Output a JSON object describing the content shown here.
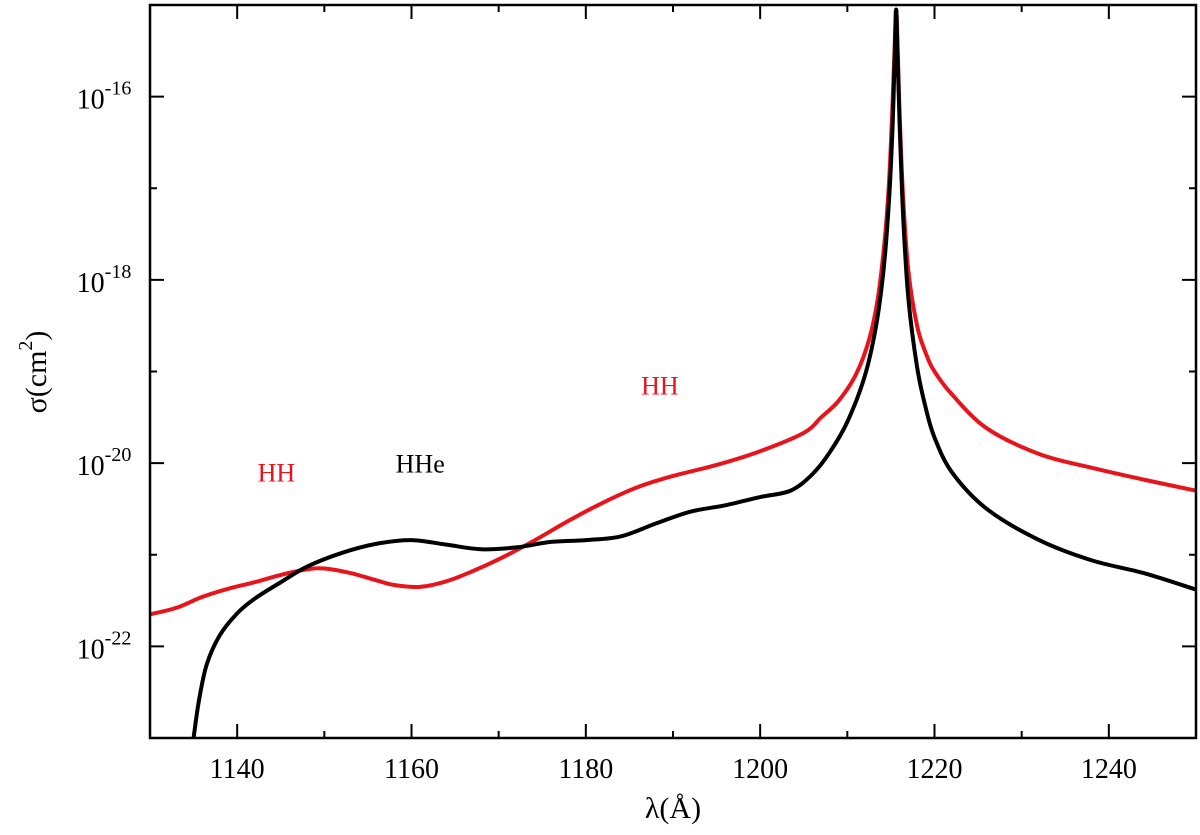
{
  "chart_data": {
    "type": "line",
    "title": "",
    "xlabel": "λ(Å)",
    "ylabel": {
      "base": "σ(cm",
      "sup": "2",
      "close": ")"
    },
    "xlim": [
      1130,
      1250
    ],
    "ylim_log10": [
      -23,
      -15
    ],
    "y_scale": "log",
    "x_ticks": [
      1140,
      1160,
      1180,
      1200,
      1220,
      1240
    ],
    "x_tick_labels": [
      "1140",
      "1160",
      "1180",
      "1200",
      "1220",
      "1240"
    ],
    "y_ticks_log10": [
      -22,
      -20,
      -18,
      -16
    ],
    "y_tick_labels": [
      {
        "base": "10",
        "exp": "-22"
      },
      {
        "base": "10",
        "exp": "-20"
      },
      {
        "base": "10",
        "exp": "-18"
      },
      {
        "base": "10",
        "exp": "-16"
      }
    ],
    "annotations": [
      {
        "text": "HH",
        "x": 1144.5,
        "y_log10": -20.2,
        "color": "#e8141b"
      },
      {
        "text": "HHe",
        "x": 1161,
        "y_log10": -20.1,
        "color": "#000000"
      },
      {
        "text": "HH",
        "x": 1188.5,
        "y_log10": -19.25,
        "color": "#e8141b"
      }
    ],
    "series": [
      {
        "name": "HH",
        "color": "#e8141b",
        "x": [
          1130,
          1133,
          1136,
          1139,
          1142,
          1145,
          1148,
          1150,
          1153,
          1156,
          1158,
          1161,
          1164,
          1167,
          1170,
          1174,
          1178,
          1182,
          1186,
          1190,
          1195,
          1200,
          1205,
          1207,
          1209,
          1211,
          1212.5,
          1213.5,
          1214.3,
          1214.8,
          1215.2,
          1215.45,
          1215.6,
          1215.75,
          1216.0,
          1216.4,
          1217,
          1218,
          1219,
          1220,
          1222,
          1226,
          1232,
          1238,
          1244,
          1250
        ],
        "y_log10": [
          -21.65,
          -21.58,
          -21.46,
          -21.37,
          -21.3,
          -21.22,
          -21.16,
          -21.15,
          -21.2,
          -21.28,
          -21.33,
          -21.35,
          -21.29,
          -21.18,
          -21.05,
          -20.85,
          -20.63,
          -20.43,
          -20.26,
          -20.14,
          -20.02,
          -19.87,
          -19.67,
          -19.5,
          -19.32,
          -19.03,
          -18.65,
          -18.2,
          -17.55,
          -16.9,
          -16.05,
          -15.4,
          -15.05,
          -15.4,
          -16.2,
          -17.1,
          -17.9,
          -18.5,
          -18.8,
          -19.0,
          -19.25,
          -19.62,
          -19.9,
          -20.05,
          -20.18,
          -20.3
        ]
      },
      {
        "name": "HHe",
        "color": "#000000",
        "x": [
          1135,
          1135.6,
          1136.5,
          1138,
          1140,
          1142,
          1145,
          1148,
          1152,
          1156,
          1160,
          1164,
          1168,
          1172,
          1176,
          1180,
          1184,
          1188,
          1192,
          1196,
          1200,
          1203.5,
          1206,
          1208,
          1210,
          1212,
          1213.3,
          1214.2,
          1214.8,
          1215.2,
          1215.45,
          1215.6,
          1215.75,
          1216.0,
          1216.4,
          1217,
          1218,
          1219,
          1220,
          1222,
          1226,
          1232,
          1238,
          1244,
          1250
        ],
        "y_log10": [
          -23.0,
          -22.6,
          -22.2,
          -21.88,
          -21.64,
          -21.48,
          -21.3,
          -21.13,
          -20.98,
          -20.88,
          -20.84,
          -20.89,
          -20.94,
          -20.92,
          -20.86,
          -20.84,
          -20.8,
          -20.66,
          -20.53,
          -20.46,
          -20.37,
          -20.3,
          -20.12,
          -19.88,
          -19.55,
          -19.05,
          -18.5,
          -17.85,
          -17.1,
          -16.3,
          -15.5,
          -15.05,
          -15.5,
          -16.3,
          -17.3,
          -18.2,
          -18.95,
          -19.4,
          -19.72,
          -20.1,
          -20.5,
          -20.84,
          -21.06,
          -21.2,
          -21.38
        ]
      }
    ]
  }
}
